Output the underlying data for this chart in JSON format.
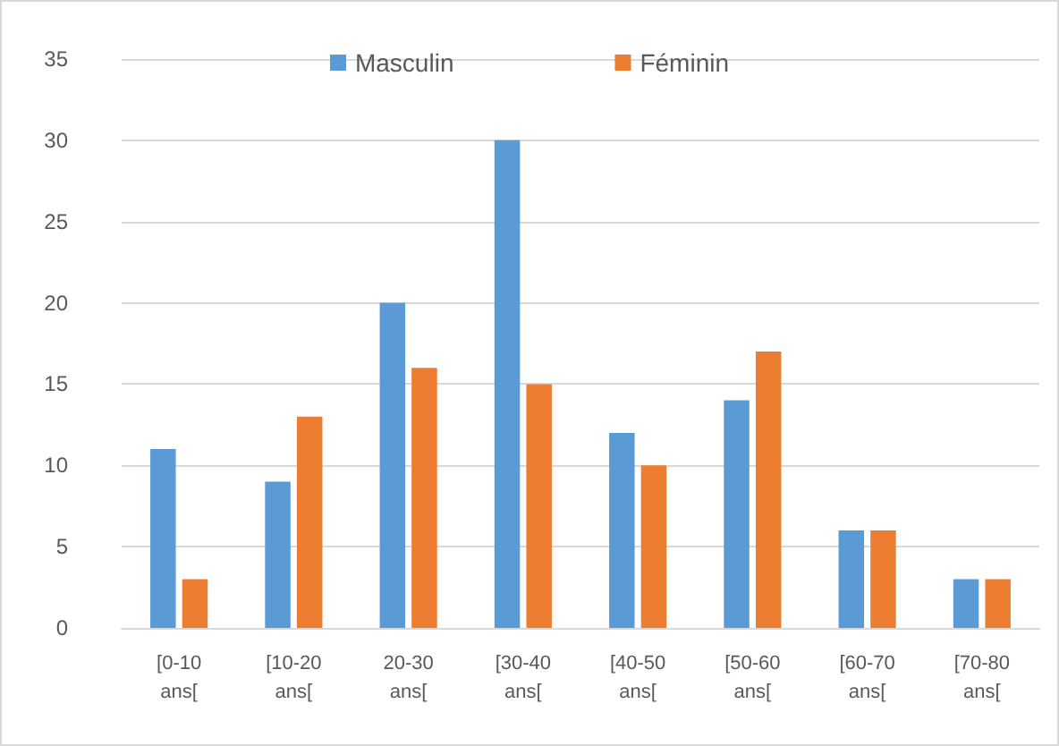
{
  "chart_data": {
    "type": "bar",
    "categories": [
      "[0-10 ans[",
      "[10-20 ans[",
      "20-30 ans[",
      "[30-40 ans[",
      "[40-50 ans[",
      "[50-60 ans[",
      "[60-70 ans[",
      "[70-80 ans["
    ],
    "series": [
      {
        "name": "Masculin",
        "color": "#5b9bd5",
        "values": [
          11,
          9,
          20,
          30,
          12,
          14,
          6,
          3
        ]
      },
      {
        "name": "Féminin",
        "color": "#ed7d31",
        "values": [
          3,
          13,
          16,
          15,
          10,
          17,
          6,
          3
        ]
      }
    ],
    "ylim": [
      0,
      35
    ],
    "yticks": [
      0,
      5,
      10,
      15,
      20,
      25,
      30,
      35
    ],
    "grid": "y",
    "legend": "top"
  }
}
